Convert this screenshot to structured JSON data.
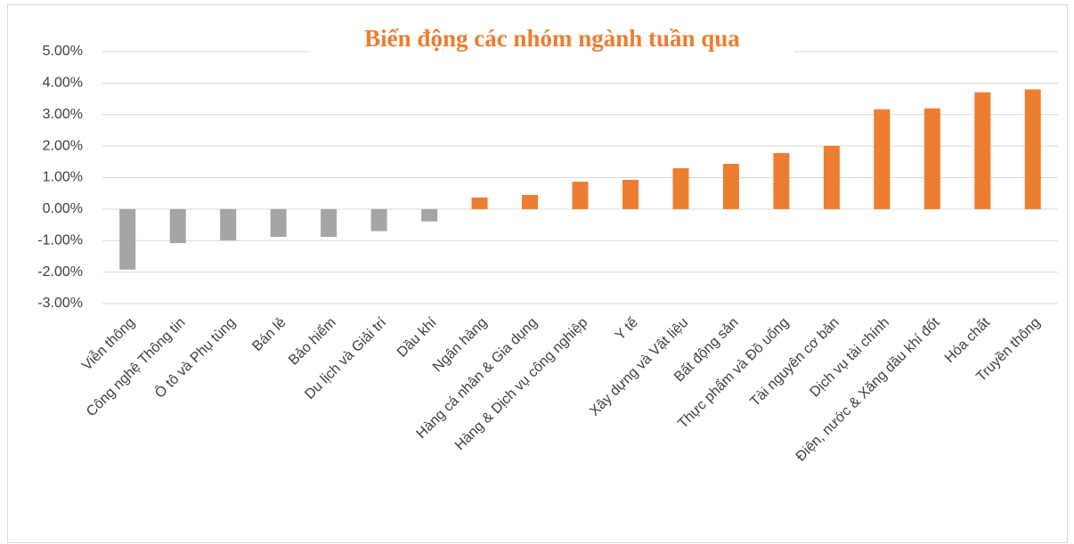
{
  "chart_data": {
    "type": "bar",
    "title": "Biến động các nhóm ngành tuần qua",
    "categories": [
      "Viễn thông",
      "Công nghệ Thông tin",
      "Ô tô và Phụ tùng",
      "Bán lẻ",
      "Bảo hiểm",
      "Du lịch và Giải trí",
      "Dầu khí",
      "Ngân hàng",
      "Hàng cá nhân & Gia dụng",
      "Hàng & Dịch vụ công nghiệp",
      "Y tế",
      "Xây dựng và Vật liệu",
      "Bất động sản",
      "Thực phẩm và Đồ uống",
      "Tài nguyên cơ bản",
      "Dịch vụ tài chính",
      "Điện, nước & Xăng dầu khí đốt",
      "Hóa chất",
      "Truyền thông"
    ],
    "values": [
      -1.92,
      -1.08,
      -0.99,
      -0.88,
      -0.88,
      -0.7,
      -0.39,
      0.37,
      0.45,
      0.87,
      0.93,
      1.3,
      1.44,
      1.78,
      2.01,
      3.17,
      3.2,
      3.71,
      3.8
    ],
    "positive_color": "#ed7d31",
    "negative_color": "#a5a5a5",
    "ylim": [
      -3,
      5
    ],
    "yticks": [
      {
        "value": -3,
        "label": "-3.00%"
      },
      {
        "value": -2,
        "label": "-2.00%"
      },
      {
        "value": -1,
        "label": "-1.00%"
      },
      {
        "value": 0,
        "label": "0.00%"
      },
      {
        "value": 1,
        "label": "1.00%"
      },
      {
        "value": 2,
        "label": "2.00%"
      },
      {
        "value": 3,
        "label": "3.00%"
      },
      {
        "value": 4,
        "label": "4.00%"
      },
      {
        "value": 5,
        "label": "5.00%"
      }
    ],
    "grid": true
  }
}
